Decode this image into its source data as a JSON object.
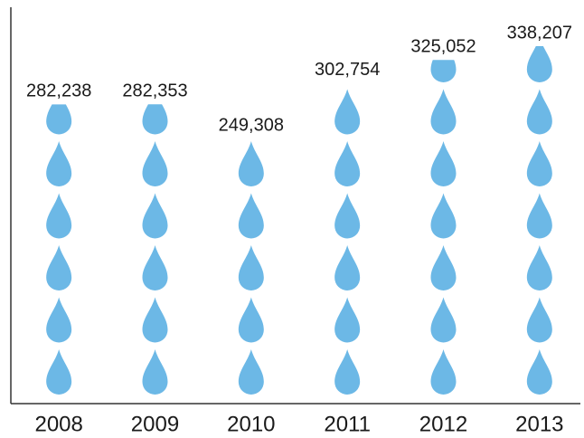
{
  "chart_data": {
    "type": "pictograph",
    "categories": [
      "2008",
      "2009",
      "2010",
      "2011",
      "2012",
      "2013"
    ],
    "values": [
      282238,
      282353,
      249308,
      302754,
      325052,
      338207
    ],
    "value_labels": [
      "282,238",
      "282,353",
      "249,308",
      "302,754",
      "325,052",
      "338,207"
    ],
    "color": "#6cb8e6",
    "ylim": [
      0,
      350000
    ]
  }
}
